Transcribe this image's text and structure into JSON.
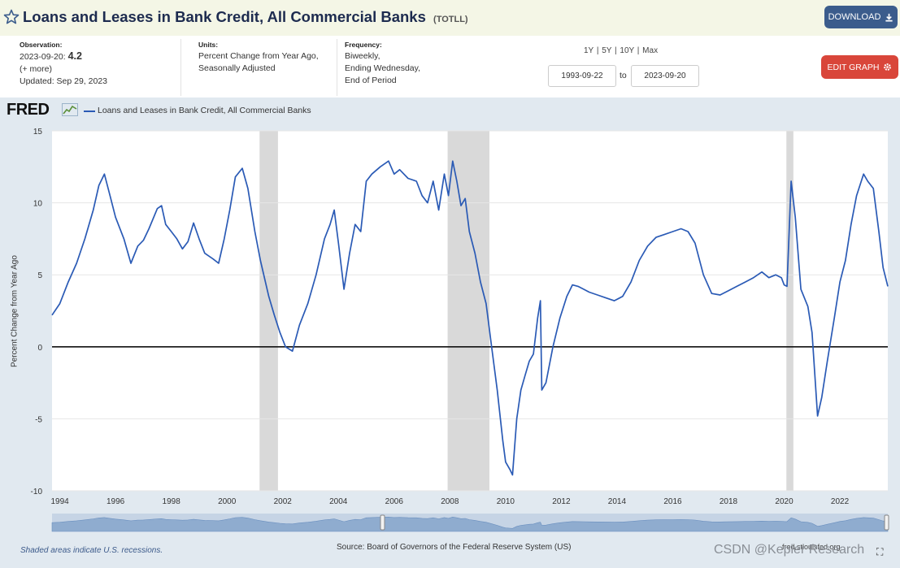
{
  "header": {
    "title": "Loans and Leases in Bank Credit, All Commercial Banks",
    "series_code": "(TOTLL)",
    "download_label": "DOWNLOAD"
  },
  "observation": {
    "label": "Observation:",
    "date": "2023-09-20:",
    "value": "4.2",
    "more": "(+ more)",
    "updated": "Updated: Sep 29, 2023"
  },
  "units": {
    "label": "Units:",
    "line1": "Percent Change from Year Ago,",
    "line2": "Seasonally Adjusted"
  },
  "frequency": {
    "label": "Frequency:",
    "line1": "Biweekly,",
    "line2": "Ending Wednesday,",
    "line3": "End of Period"
  },
  "ranges": "1Y | 5Y | 10Y | Max",
  "date_range": {
    "start": "1993-09-22",
    "to": "to",
    "end": "2023-09-20"
  },
  "edit_label": "EDIT GRAPH",
  "fred_logo": "FRED",
  "footer": {
    "shaded_note": "Shaded areas indicate U.S. recessions.",
    "source": "Source: Board of Governors of the Federal Reserve System (US)",
    "fred_url": "fred.stlouisfed.org",
    "watermark": "CSDN @Kepler Research"
  },
  "colors": {
    "line": "#2a5ab5",
    "recession": "#d9d9d9",
    "plot_bg": "#ffffff",
    "outer_bg": "#e1e9f0"
  },
  "chart_data": {
    "type": "line",
    "title": "Loans and Leases in Bank Credit, All Commercial Banks",
    "xlabel": "",
    "ylabel": "Percent Change from Year Ago",
    "xlim": [
      1993.72,
      2023.72
    ],
    "ylim": [
      -10,
      15
    ],
    "yticks": [
      15,
      10,
      5,
      0,
      -5,
      -10
    ],
    "xticks": [
      1994,
      1996,
      1998,
      2000,
      2002,
      2004,
      2006,
      2008,
      2010,
      2012,
      2014,
      2016,
      2018,
      2020,
      2022
    ],
    "recessions": [
      [
        2001.17,
        2001.83
      ],
      [
        2007.92,
        2009.42
      ],
      [
        2020.08,
        2020.33
      ]
    ],
    "series": [
      {
        "name": "Loans and Leases in Bank Credit, All Commercial Banks",
        "x": [
          1993.72,
          1994.0,
          1994.3,
          1994.6,
          1994.9,
          1995.2,
          1995.4,
          1995.6,
          1995.8,
          1996.0,
          1996.3,
          1996.55,
          1996.8,
          1997.0,
          1997.2,
          1997.5,
          1997.65,
          1997.8,
          1998.0,
          1998.2,
          1998.4,
          1998.6,
          1998.8,
          1999.0,
          1999.2,
          1999.5,
          1999.7,
          1999.9,
          2000.1,
          2000.3,
          2000.55,
          2000.75,
          2001.0,
          2001.2,
          2001.5,
          2001.7,
          2001.9,
          2002.1,
          2002.35,
          2002.6,
          2002.9,
          2003.2,
          2003.5,
          2003.7,
          2003.85,
          2004.0,
          2004.2,
          2004.4,
          2004.6,
          2004.8,
          2005.0,
          2005.2,
          2005.5,
          2005.8,
          2006.0,
          2006.2,
          2006.5,
          2006.8,
          2007.0,
          2007.2,
          2007.4,
          2007.6,
          2007.8,
          2007.95,
          2008.1,
          2008.25,
          2008.4,
          2008.55,
          2008.7,
          2008.9,
          2009.1,
          2009.3,
          2009.5,
          2009.7,
          2009.9,
          2010.0,
          2010.15,
          2010.25,
          2010.4,
          2010.55,
          2010.7,
          2010.85,
          2011.0,
          2011.15,
          2011.25,
          2011.3,
          2011.45,
          2011.7,
          2011.95,
          2012.2,
          2012.4,
          2012.6,
          2012.8,
          2013.0,
          2013.3,
          2013.6,
          2013.9,
          2014.2,
          2014.5,
          2014.8,
          2015.1,
          2015.4,
          2015.7,
          2016.0,
          2016.3,
          2016.55,
          2016.8,
          2017.1,
          2017.4,
          2017.7,
          2018.0,
          2018.3,
          2018.6,
          2018.9,
          2019.2,
          2019.45,
          2019.7,
          2019.9,
          2020.0,
          2020.1,
          2020.25,
          2020.4,
          2020.6,
          2020.85,
          2021.0,
          2021.2,
          2021.35,
          2021.55,
          2021.8,
          2022.0,
          2022.2,
          2022.4,
          2022.6,
          2022.85,
          2023.0,
          2023.2,
          2023.4,
          2023.55,
          2023.72
        ],
        "values": [
          2.2,
          3.0,
          4.5,
          5.8,
          7.5,
          9.5,
          11.2,
          12.0,
          10.5,
          9.0,
          7.5,
          5.8,
          7.0,
          7.4,
          8.2,
          9.6,
          9.8,
          8.5,
          8.0,
          7.5,
          6.8,
          7.3,
          8.6,
          7.5,
          6.5,
          6.1,
          5.8,
          7.5,
          9.5,
          11.8,
          12.4,
          11.0,
          8.0,
          6.0,
          3.5,
          2.2,
          1.0,
          0.0,
          -0.3,
          1.5,
          3.0,
          5.0,
          7.5,
          8.5,
          9.5,
          7.2,
          4.0,
          6.5,
          8.5,
          8.0,
          11.5,
          12.0,
          12.5,
          12.9,
          12.0,
          12.3,
          11.7,
          11.5,
          10.5,
          10.0,
          11.5,
          9.5,
          12.0,
          10.5,
          12.9,
          11.5,
          9.8,
          10.3,
          8.0,
          6.5,
          4.5,
          3.0,
          0.0,
          -3.0,
          -6.5,
          -8.0,
          -8.5,
          -8.9,
          -5.0,
          -3.0,
          -2.0,
          -1.0,
          -0.5,
          2.0,
          3.2,
          -3.0,
          -2.5,
          0.0,
          2.0,
          3.5,
          4.3,
          4.2,
          4.0,
          3.8,
          3.6,
          3.4,
          3.2,
          3.5,
          4.5,
          6.0,
          7.0,
          7.6,
          7.8,
          8.0,
          8.2,
          8.0,
          7.2,
          5.0,
          3.7,
          3.6,
          3.9,
          4.2,
          4.5,
          4.8,
          5.2,
          4.8,
          5.0,
          4.8,
          4.3,
          4.2,
          11.5,
          9.0,
          4.0,
          2.8,
          1.0,
          -4.8,
          -3.5,
          -1.0,
          2.0,
          4.5,
          6.0,
          8.5,
          10.5,
          12.0,
          11.5,
          11.0,
          8.0,
          5.5,
          4.2
        ]
      }
    ]
  }
}
